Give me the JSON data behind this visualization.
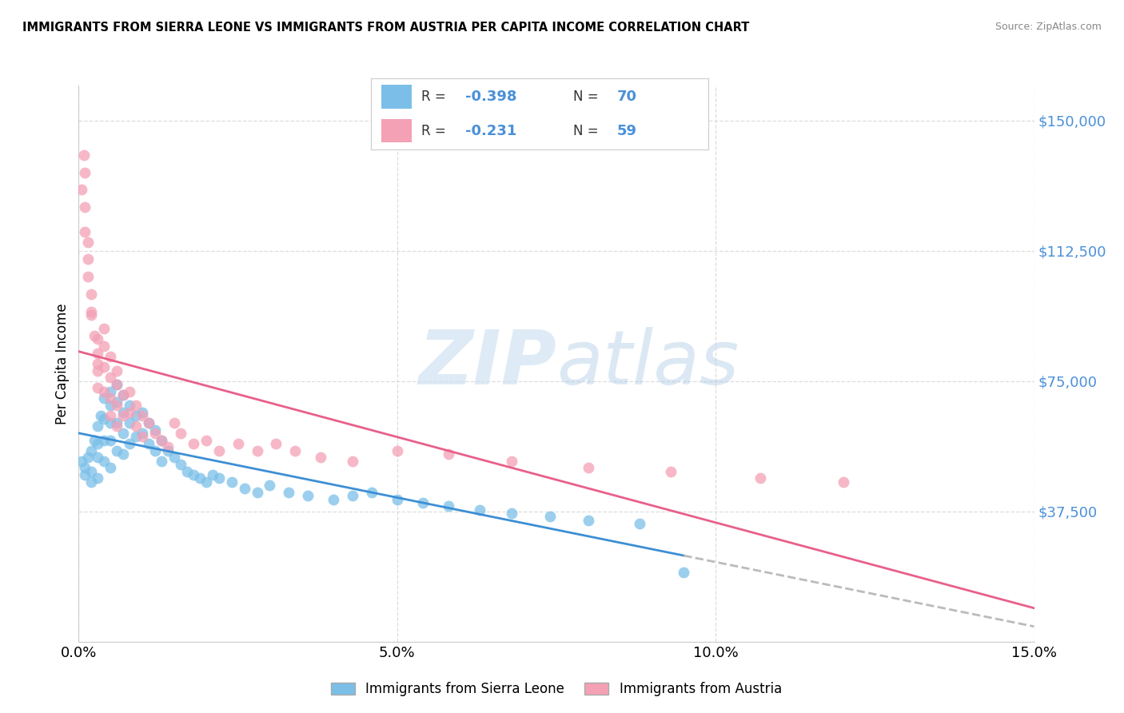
{
  "title": "IMMIGRANTS FROM SIERRA LEONE VS IMMIGRANTS FROM AUSTRIA PER CAPITA INCOME CORRELATION CHART",
  "source": "Source: ZipAtlas.com",
  "ylabel": "Per Capita Income",
  "xmin": 0.0,
  "xmax": 0.15,
  "ymin": 0,
  "ymax": 160000,
  "color_blue": "#7bbfe8",
  "color_pink": "#f4a0b5",
  "line_blue": "#3d8fd4",
  "line_pink": "#e8608a",
  "line_dashed_color": "#bbbbbb",
  "ytick_color": "#4a90d9",
  "watermark_color": "#c8dff0",
  "legend_label1": "Immigrants from Sierra Leone",
  "legend_label2": "Immigrants from Austria",
  "sierra_leone_x": [
    0.0005,
    0.001,
    0.001,
    0.0015,
    0.002,
    0.002,
    0.002,
    0.0025,
    0.003,
    0.003,
    0.003,
    0.003,
    0.0035,
    0.004,
    0.004,
    0.004,
    0.004,
    0.005,
    0.005,
    0.005,
    0.005,
    0.005,
    0.006,
    0.006,
    0.006,
    0.006,
    0.007,
    0.007,
    0.007,
    0.007,
    0.008,
    0.008,
    0.008,
    0.009,
    0.009,
    0.01,
    0.01,
    0.011,
    0.011,
    0.012,
    0.012,
    0.013,
    0.013,
    0.014,
    0.015,
    0.016,
    0.017,
    0.018,
    0.019,
    0.02,
    0.021,
    0.022,
    0.024,
    0.026,
    0.028,
    0.03,
    0.033,
    0.036,
    0.04,
    0.043,
    0.046,
    0.05,
    0.054,
    0.058,
    0.063,
    0.068,
    0.074,
    0.08,
    0.088,
    0.095
  ],
  "sierra_leone_y": [
    52000,
    50000,
    48000,
    53000,
    55000,
    49000,
    46000,
    58000,
    62000,
    57000,
    53000,
    47000,
    65000,
    70000,
    64000,
    58000,
    52000,
    72000,
    68000,
    63000,
    58000,
    50000,
    74000,
    69000,
    63000,
    55000,
    71000,
    66000,
    60000,
    54000,
    68000,
    63000,
    57000,
    65000,
    59000,
    66000,
    60000,
    63000,
    57000,
    61000,
    55000,
    58000,
    52000,
    55000,
    53000,
    51000,
    49000,
    48000,
    47000,
    46000,
    48000,
    47000,
    46000,
    44000,
    43000,
    45000,
    43000,
    42000,
    41000,
    42000,
    43000,
    41000,
    40000,
    39000,
    38000,
    37000,
    36000,
    35000,
    34000,
    20000
  ],
  "austria_x": [
    0.0005,
    0.001,
    0.001,
    0.0015,
    0.0015,
    0.002,
    0.002,
    0.0025,
    0.003,
    0.003,
    0.003,
    0.004,
    0.004,
    0.004,
    0.005,
    0.005,
    0.005,
    0.006,
    0.006,
    0.006,
    0.007,
    0.007,
    0.008,
    0.008,
    0.009,
    0.009,
    0.01,
    0.01,
    0.011,
    0.012,
    0.013,
    0.014,
    0.015,
    0.016,
    0.018,
    0.02,
    0.022,
    0.025,
    0.028,
    0.031,
    0.034,
    0.038,
    0.043,
    0.05,
    0.058,
    0.068,
    0.08,
    0.093,
    0.107,
    0.12,
    0.0008,
    0.001,
    0.0015,
    0.002,
    0.003,
    0.003,
    0.004,
    0.005,
    0.006
  ],
  "austria_y": [
    130000,
    125000,
    118000,
    110000,
    105000,
    100000,
    94000,
    88000,
    83000,
    78000,
    73000,
    85000,
    79000,
    72000,
    76000,
    70000,
    65000,
    74000,
    68000,
    62000,
    71000,
    65000,
    72000,
    66000,
    68000,
    62000,
    65000,
    59000,
    63000,
    60000,
    58000,
    56000,
    63000,
    60000,
    57000,
    58000,
    55000,
    57000,
    55000,
    57000,
    55000,
    53000,
    52000,
    55000,
    54000,
    52000,
    50000,
    49000,
    47000,
    46000,
    140000,
    135000,
    115000,
    95000,
    87000,
    80000,
    90000,
    82000,
    78000
  ]
}
